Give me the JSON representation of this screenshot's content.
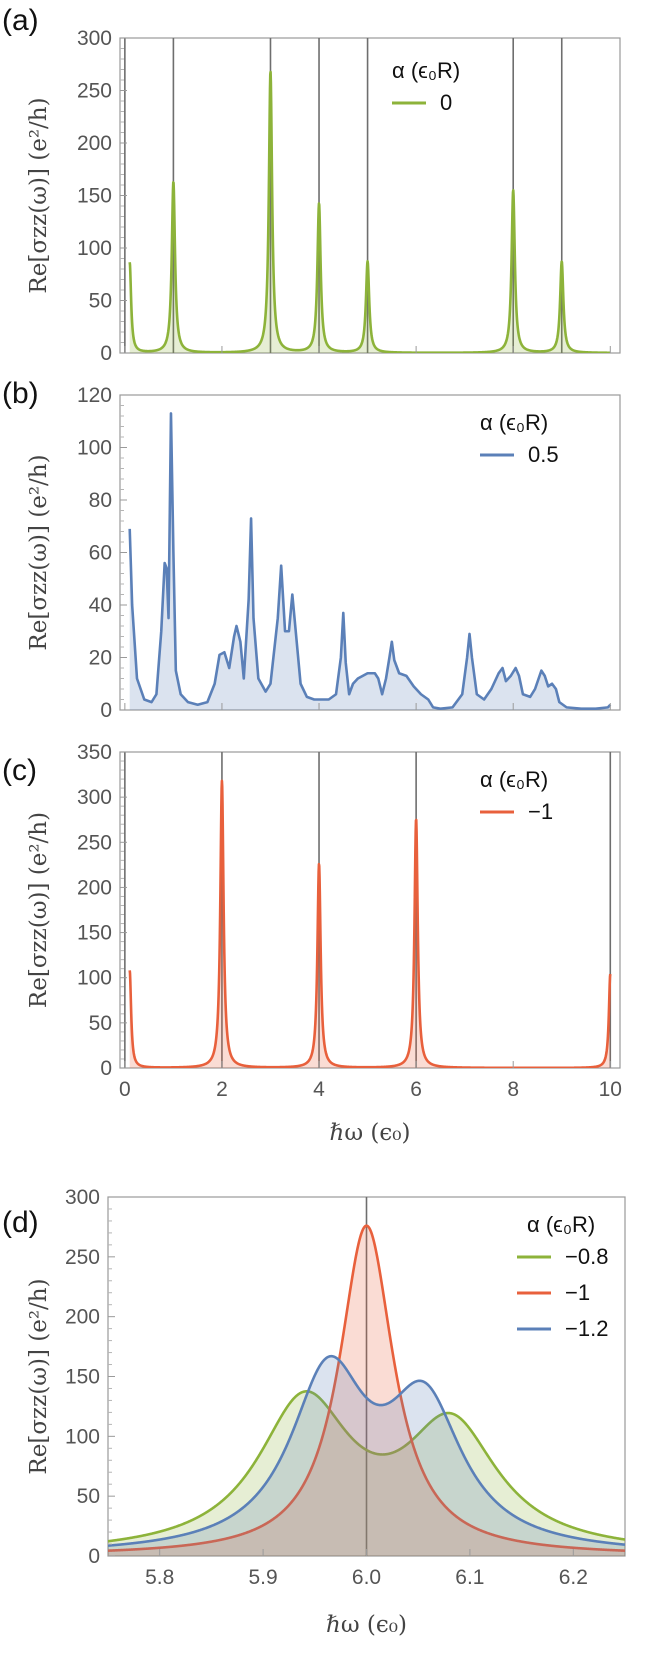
{
  "chart_data": [
    {
      "panel": "(a)",
      "type": "line",
      "ylabel": "Re[σzz(ω)]  (e²/h)",
      "xlabel": "",
      "xlim": [
        -0.1,
        10.2
      ],
      "ylim": [
        0,
        300
      ],
      "yticks": [
        0,
        50,
        100,
        150,
        200,
        250,
        300
      ],
      "xticks": [
        0,
        2,
        4,
        6,
        8,
        10
      ],
      "show_x_ticklabels": false,
      "vertical_lines": [
        0,
        1,
        3,
        4,
        5,
        8,
        9
      ],
      "legend": {
        "title": "α (ϵ₀R)",
        "position": "top-right",
        "entries": [
          "0"
        ]
      },
      "series": [
        {
          "name": "0",
          "color": "#8db33a",
          "filled": true,
          "x_start": 0.1,
          "x_end": 10,
          "edge_value": 86,
          "peaks": [
            {
              "x": 1.0,
              "height": 163,
              "width": 0.04
            },
            {
              "x": 3.0,
              "height": 268,
              "width": 0.04
            },
            {
              "x": 4.0,
              "height": 142,
              "width": 0.04
            },
            {
              "x": 5.0,
              "height": 87,
              "width": 0.04
            },
            {
              "x": 8.0,
              "height": 155,
              "width": 0.04
            },
            {
              "x": 9.0,
              "height": 87,
              "width": 0.04
            }
          ]
        }
      ]
    },
    {
      "panel": "(b)",
      "type": "line",
      "ylabel": "Re[σzz(ω)]  (e²/h)",
      "xlabel": "",
      "xlim": [
        -0.1,
        10.2
      ],
      "ylim": [
        0,
        120
      ],
      "yticks": [
        0,
        20,
        40,
        60,
        80,
        100,
        120
      ],
      "xticks": [
        0,
        2,
        4,
        6,
        8,
        10
      ],
      "show_x_ticklabels": false,
      "vertical_lines": [],
      "legend": {
        "title": "α (ϵ₀R)",
        "position": "top-right",
        "entries": [
          "0.5"
        ]
      },
      "series": [
        {
          "name": "0.5",
          "color": "#5b80b8",
          "filled": true,
          "points": [
            [
              0.1,
              69
            ],
            [
              0.15,
              40
            ],
            [
              0.25,
              12
            ],
            [
              0.4,
              4
            ],
            [
              0.55,
              3
            ],
            [
              0.65,
              6
            ],
            [
              0.75,
              30
            ],
            [
              0.82,
              56
            ],
            [
              0.86,
              54
            ],
            [
              0.9,
              35
            ],
            [
              0.95,
              113
            ],
            [
              1.0,
              60
            ],
            [
              1.05,
              15
            ],
            [
              1.15,
              6
            ],
            [
              1.3,
              3
            ],
            [
              1.5,
              2
            ],
            [
              1.7,
              3
            ],
            [
              1.85,
              10
            ],
            [
              1.95,
              21
            ],
            [
              2.05,
              22
            ],
            [
              2.15,
              16
            ],
            [
              2.25,
              28
            ],
            [
              2.3,
              32
            ],
            [
              2.38,
              26
            ],
            [
              2.45,
              12
            ],
            [
              2.55,
              42
            ],
            [
              2.6,
              73
            ],
            [
              2.65,
              35
            ],
            [
              2.75,
              12
            ],
            [
              2.9,
              7
            ],
            [
              3.0,
              10
            ],
            [
              3.15,
              35
            ],
            [
              3.22,
              55
            ],
            [
              3.3,
              30
            ],
            [
              3.38,
              30
            ],
            [
              3.45,
              44
            ],
            [
              3.52,
              30
            ],
            [
              3.62,
              10
            ],
            [
              3.75,
              5
            ],
            [
              3.9,
              4
            ],
            [
              4.05,
              4
            ],
            [
              4.2,
              4
            ],
            [
              4.35,
              6
            ],
            [
              4.45,
              20
            ],
            [
              4.5,
              37
            ],
            [
              4.55,
              18
            ],
            [
              4.62,
              6
            ],
            [
              4.7,
              10
            ],
            [
              4.8,
              12
            ],
            [
              5.0,
              14
            ],
            [
              5.15,
              14
            ],
            [
              5.22,
              12
            ],
            [
              5.3,
              6
            ],
            [
              5.38,
              12
            ],
            [
              5.45,
              20
            ],
            [
              5.5,
              26
            ],
            [
              5.55,
              19
            ],
            [
              5.65,
              14
            ],
            [
              5.8,
              13
            ],
            [
              5.95,
              9
            ],
            [
              6.1,
              6
            ],
            [
              6.25,
              4
            ],
            [
              6.35,
              1
            ],
            [
              6.5,
              0.5
            ],
            [
              6.75,
              1
            ],
            [
              6.95,
              6
            ],
            [
              7.05,
              20
            ],
            [
              7.1,
              29
            ],
            [
              7.15,
              20
            ],
            [
              7.25,
              6
            ],
            [
              7.4,
              4
            ],
            [
              7.55,
              8
            ],
            [
              7.7,
              14
            ],
            [
              7.78,
              16
            ],
            [
              7.85,
              11
            ],
            [
              7.95,
              13
            ],
            [
              8.05,
              16
            ],
            [
              8.12,
              13
            ],
            [
              8.2,
              6
            ],
            [
              8.35,
              5
            ],
            [
              8.45,
              8
            ],
            [
              8.58,
              15
            ],
            [
              8.65,
              13
            ],
            [
              8.72,
              9
            ],
            [
              8.8,
              10
            ],
            [
              8.88,
              8
            ],
            [
              8.95,
              3
            ],
            [
              9.1,
              1
            ],
            [
              9.4,
              0.5
            ],
            [
              9.7,
              0.5
            ],
            [
              9.95,
              1
            ],
            [
              10.0,
              2
            ]
          ]
        }
      ]
    },
    {
      "panel": "(c)",
      "type": "line",
      "ylabel": "Re[σzz(ω)]  (e²/h)",
      "xlabel": "ℏω  (ϵ₀)",
      "xlim": [
        -0.1,
        10.2
      ],
      "ylim": [
        0,
        350
      ],
      "yticks": [
        0,
        50,
        100,
        150,
        200,
        250,
        300,
        350
      ],
      "xticks": [
        0,
        2,
        4,
        6,
        8,
        10
      ],
      "show_x_ticklabels": true,
      "vertical_lines": [
        0,
        2,
        4,
        6,
        10
      ],
      "legend": {
        "title": "α (ϵ₀R)",
        "position": "top-right",
        "entries": [
          "−1"
        ]
      },
      "series": [
        {
          "name": "−1",
          "color": "#e8603c",
          "filled": true,
          "x_start": 0.1,
          "x_end": 10,
          "edge_value": 108,
          "end_value": 104,
          "peaks": [
            {
              "x": 2.0,
              "height": 318,
              "width": 0.04
            },
            {
              "x": 4.0,
              "height": 226,
              "width": 0.04
            },
            {
              "x": 6.0,
              "height": 276,
              "width": 0.04
            }
          ]
        }
      ]
    },
    {
      "panel": "(d)",
      "type": "line",
      "ylabel": "Re[σzz(ω)]  (e²/h)",
      "xlabel": "ℏω  (ϵ₀)",
      "xlim": [
        5.75,
        6.25
      ],
      "ylim": [
        0,
        300
      ],
      "yticks": [
        0,
        50,
        100,
        150,
        200,
        250,
        300
      ],
      "xticks": [
        5.8,
        5.9,
        6.0,
        6.1,
        6.2
      ],
      "xtick_labels": [
        "5.8",
        "5.9",
        "6.0",
        "6.1",
        "6.2"
      ],
      "show_x_ticklabels": true,
      "vertical_lines": [
        6.0
      ],
      "legend": {
        "title": "α (ϵ₀R)",
        "position": "top-right",
        "entries": [
          "−0.8",
          "−1",
          "−1.2"
        ]
      },
      "series": [
        {
          "name": "−0.8",
          "color": "#8db33a",
          "filled": true,
          "peaks": [
            {
              "x": 5.94,
              "height": 124,
              "width": 0.055
            },
            {
              "x": 6.082,
              "height": 103,
              "width": 0.055
            }
          ]
        },
        {
          "name": "−1",
          "color": "#e8603c",
          "filled": true,
          "peaks": [
            {
              "x": 6.0,
              "height": 276,
              "width": 0.032
            }
          ]
        },
        {
          "name": "−1.2",
          "color": "#5b80b8",
          "filled": true,
          "peaks": [
            {
              "x": 5.963,
              "height": 144,
              "width": 0.045
            },
            {
              "x": 6.056,
              "height": 118,
              "width": 0.045
            }
          ]
        }
      ]
    }
  ],
  "labels": {
    "panel_a": "(a)",
    "panel_b": "(b)",
    "panel_c": "(c)",
    "panel_d": "(d)"
  }
}
